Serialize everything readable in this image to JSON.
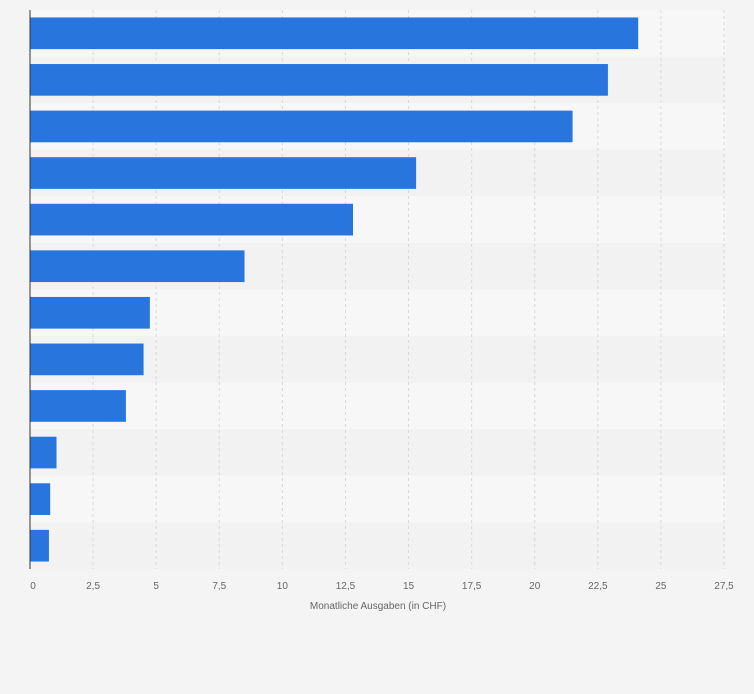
{
  "chart_data": {
    "type": "bar",
    "orientation": "horizontal",
    "title": "",
    "xlabel": "Monatliche Ausgaben (in CHF)",
    "ylabel": "",
    "categories": [
      "",
      "",
      "",
      "",
      "",
      "",
      "",
      "",
      "",
      "",
      "",
      ""
    ],
    "values": [
      24.1,
      22.9,
      21.5,
      15.3,
      12.8,
      8.5,
      4.75,
      4.5,
      3.8,
      1.05,
      0.8,
      0.75
    ],
    "xlim": [
      0,
      27.5
    ],
    "ticks": [
      0,
      2.5,
      5,
      7.5,
      10,
      12.5,
      15,
      17.5,
      20,
      22.5,
      25,
      27.5
    ],
    "tick_labels": [
      "0",
      "2,5",
      "5",
      "7,5",
      "10",
      "12,5",
      "15",
      "17,5",
      "20",
      "22,5",
      "25",
      "27,5"
    ],
    "grid": true,
    "legend": "none",
    "colors": {
      "bar": "#2876dd",
      "row_light": "#f7f7f7",
      "row_dark": "#f2f2f2",
      "grid": "#d8d8d8",
      "axis": "#333333",
      "text": "#666666"
    }
  }
}
